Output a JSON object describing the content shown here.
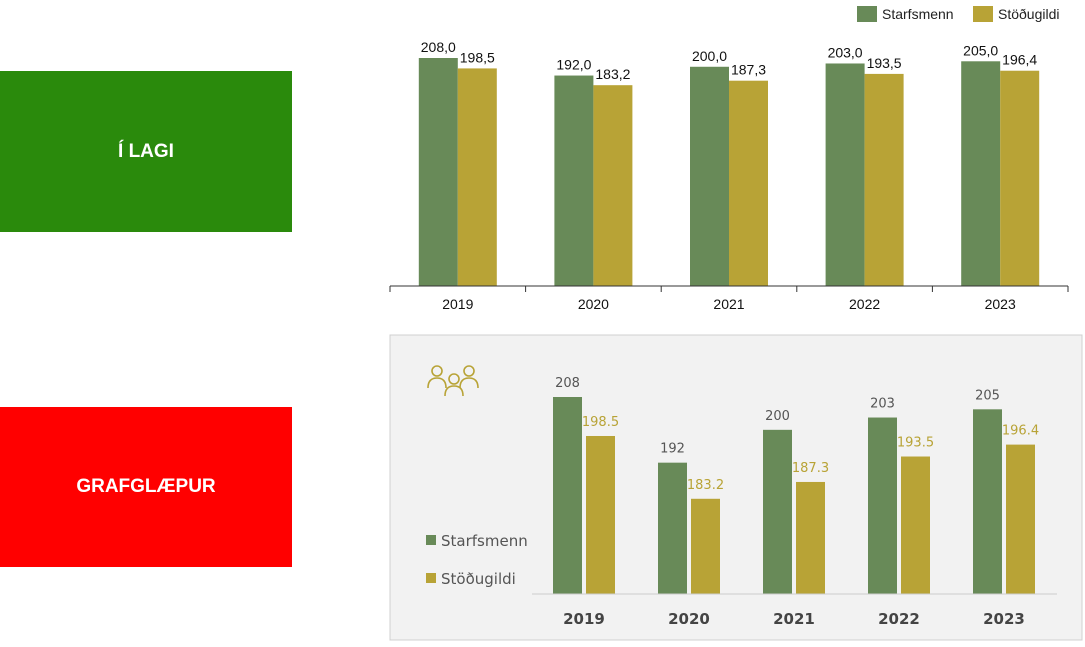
{
  "status_panels": [
    {
      "label": "Í LAGI",
      "color": "#2a8a0c"
    },
    {
      "label": "GRAFGLÆPUR",
      "color": "#ff0000"
    }
  ],
  "colors": {
    "series1": "#688a58",
    "series2": "#b8a336",
    "value_label_series1": "#555555",
    "value_label_series2": "#b8a336",
    "card_background": "#f2f2f2"
  },
  "chart_data": [
    {
      "type": "bar",
      "categories": [
        "2019",
        "2020",
        "2021",
        "2022",
        "2023"
      ],
      "series": [
        {
          "name": "Starfsmenn",
          "values": [
            208.0,
            192.0,
            200.0,
            203.0,
            205.0
          ],
          "labels": [
            "208,0",
            "192,0",
            "200,0",
            "203,0",
            "205,0"
          ]
        },
        {
          "name": "Stöðugildi",
          "values": [
            198.5,
            183.2,
            187.3,
            193.5,
            196.4
          ],
          "labels": [
            "198,5",
            "183,2",
            "187,3",
            "193,5",
            "196,4"
          ]
        }
      ],
      "ylim": [
        0,
        208
      ],
      "grid": false,
      "legend": "top-right"
    },
    {
      "type": "bar",
      "categories": [
        "2019",
        "2020",
        "2021",
        "2022",
        "2023"
      ],
      "series": [
        {
          "name": "Starfsmenn",
          "values": [
            208,
            192,
            200,
            203,
            205
          ],
          "labels": [
            "208",
            "192",
            "200",
            "203",
            "205"
          ]
        },
        {
          "name": "Stöðugildi",
          "values": [
            198.5,
            183.2,
            187.3,
            193.5,
            196.4
          ],
          "labels": [
            "198.5",
            "183.2",
            "187.3",
            "193.5",
            "196.4"
          ]
        }
      ],
      "ylim": [
        160,
        208
      ],
      "grid": false,
      "legend": "left",
      "icon": "people-group-icon"
    }
  ]
}
